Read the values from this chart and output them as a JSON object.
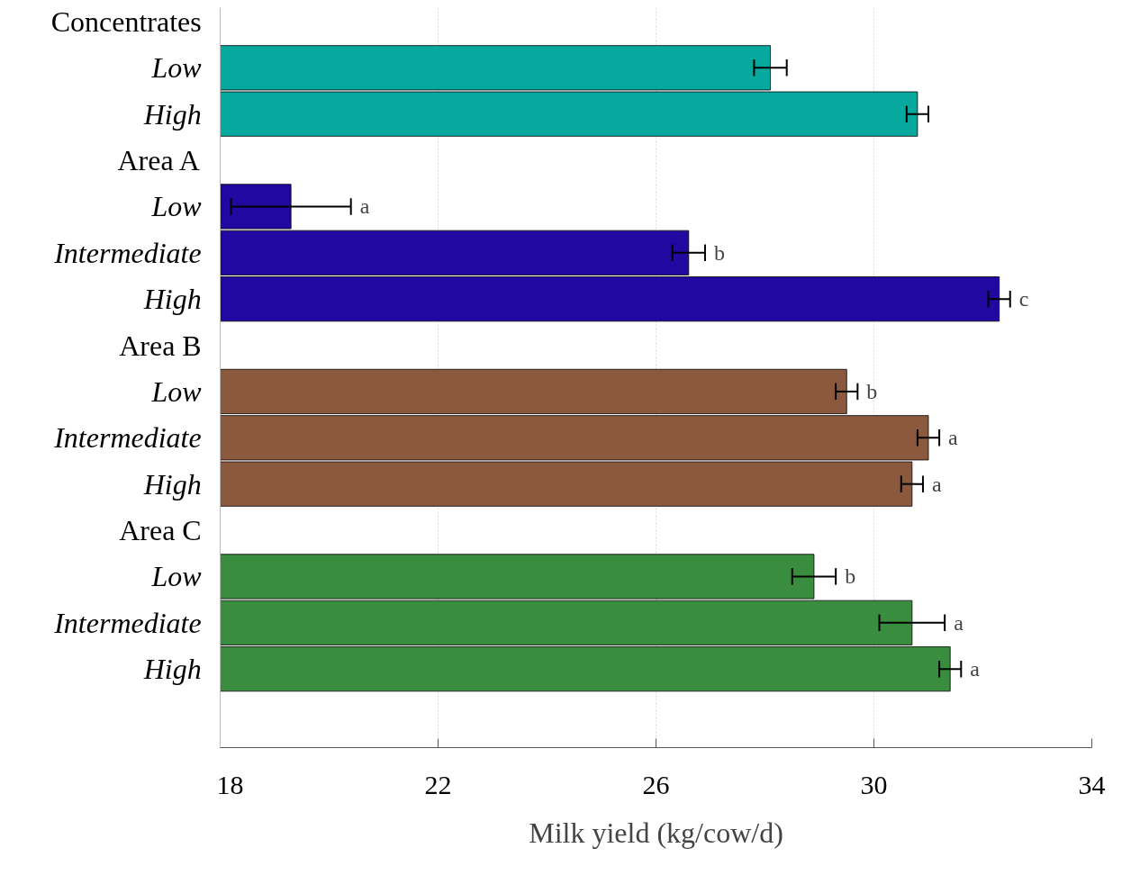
{
  "chart_data": {
    "type": "bar",
    "orientation": "horizontal",
    "xlabel": "Milk yield (kg/cow/d)",
    "categories": [
      "Concentrates",
      "Low",
      "High",
      "Area A",
      "Low",
      "Intermediate",
      "High",
      "Area B",
      "Low",
      "Intermediate",
      "High",
      "Area C",
      "Low",
      "Intermediate",
      "High"
    ],
    "values": [
      null,
      28.1,
      30.8,
      null,
      19.3,
      26.6,
      32.3,
      null,
      29.5,
      31.0,
      30.7,
      null,
      28.9,
      30.7,
      31.4
    ],
    "colors": [
      null,
      "#07a89e",
      "#07a89e",
      null,
      "#2008a0",
      "#2008a0",
      "#2008a0",
      null,
      "#8b5a3e",
      "#8b5a3e",
      "#8b5a3e",
      null,
      "#3a8c3e",
      "#3a8c3e",
      "#3a8c3e"
    ],
    "errors": [
      null,
      0.3,
      0.2,
      null,
      1.1,
      0.3,
      0.2,
      null,
      0.2,
      0.2,
      0.2,
      null,
      0.4,
      0.6,
      0.2
    ],
    "value_labels": [
      null,
      null,
      null,
      null,
      "a",
      "b",
      "c",
      null,
      "b",
      "a",
      "a",
      null,
      "b",
      "a",
      "a"
    ],
    "xlim": [
      18,
      34
    ],
    "xticks": [
      18,
      22,
      26,
      30,
      34
    ],
    "grid": "x"
  }
}
